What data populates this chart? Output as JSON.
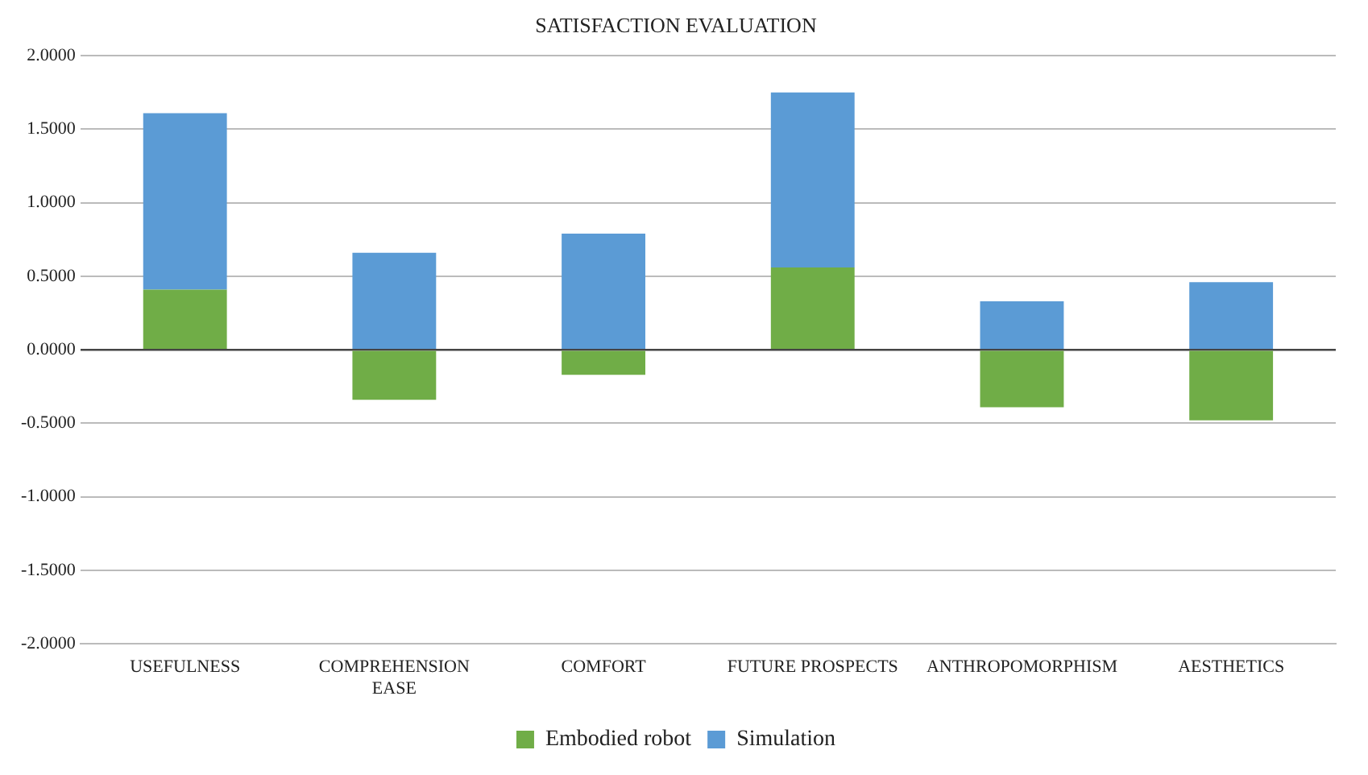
{
  "chart_data": {
    "type": "bar",
    "title": "SATISFACTION EVALUATION",
    "categories": [
      "USEFULNESS",
      "COMPREHENSION EASE",
      "COMFORT",
      "FUTURE PROSPECTS",
      "ANTHROPOMORPHISM",
      "AESTHETICS"
    ],
    "series": [
      {
        "name": "Embodied robot",
        "color": "#70ad47",
        "values": [
          0.41,
          -0.34,
          -0.17,
          0.56,
          -0.39,
          -0.48
        ]
      },
      {
        "name": "Simulation",
        "color": "#5b9bd5",
        "values": [
          1.2,
          0.66,
          0.79,
          1.19,
          0.33,
          0.46
        ]
      }
    ],
    "stacked": true,
    "ylim": [
      -2,
      2
    ],
    "yticks": [
      {
        "value": -2,
        "label": "-2.0000"
      },
      {
        "value": -1.5,
        "label": "-1.5000"
      },
      {
        "value": -1,
        "label": "-1.0000"
      },
      {
        "value": -0.5,
        "label": "-0.5000"
      },
      {
        "value": 0,
        "label": "0.0000"
      },
      {
        "value": 0.5,
        "label": "0.5000"
      },
      {
        "value": 1,
        "label": "1.0000"
      },
      {
        "value": 1.5,
        "label": "1.5000"
      },
      {
        "value": 2,
        "label": "2.0000"
      }
    ],
    "grid": "y",
    "legend": "bottom"
  }
}
